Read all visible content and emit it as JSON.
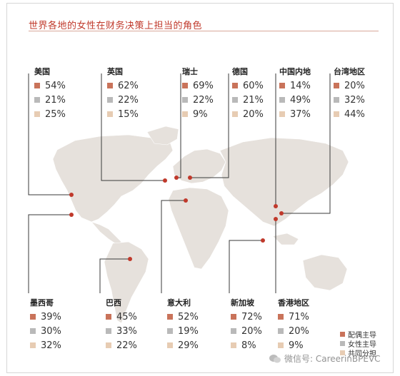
{
  "title": "世界各地的女性在财务决策上担当的角色",
  "legend": [
    {
      "label": "配偶主导",
      "color": "#c9735a"
    },
    {
      "label": "女性主导",
      "color": "#b9b9b9"
    },
    {
      "label": "共同分担",
      "color": "#e7ccb3"
    }
  ],
  "watermark": "微信号: CareerinBPEVC",
  "chart_data": {
    "type": "table",
    "title": "世界各地的女性在财务决策上担当的角色",
    "series": [
      "配偶主导",
      "女性主导",
      "共同分担"
    ],
    "regions": [
      {
        "name": "美国",
        "values": [
          "54%",
          "21%",
          "25%"
        ]
      },
      {
        "name": "英国",
        "values": [
          "62%",
          "22%",
          "15%"
        ]
      },
      {
        "name": "瑞士",
        "values": [
          "69%",
          "22%",
          "9%"
        ]
      },
      {
        "name": "德国",
        "values": [
          "60%",
          "21%",
          "20%"
        ]
      },
      {
        "name": "中国内地",
        "values": [
          "14%",
          "49%",
          "37%"
        ]
      },
      {
        "name": "台湾地区",
        "values": [
          "20%",
          "32%",
          "44%"
        ]
      },
      {
        "name": "墨西哥",
        "values": [
          "39%",
          "30%",
          "32%"
        ]
      },
      {
        "name": "巴西",
        "values": [
          "45%",
          "33%",
          "22%"
        ]
      },
      {
        "name": "意大利",
        "values": [
          "52%",
          "19%",
          "29%"
        ]
      },
      {
        "name": "新加坡",
        "values": [
          "72%",
          "20%",
          "8%"
        ]
      },
      {
        "name": "香港地区",
        "values": [
          "71%",
          "20%",
          "9%"
        ]
      }
    ]
  }
}
